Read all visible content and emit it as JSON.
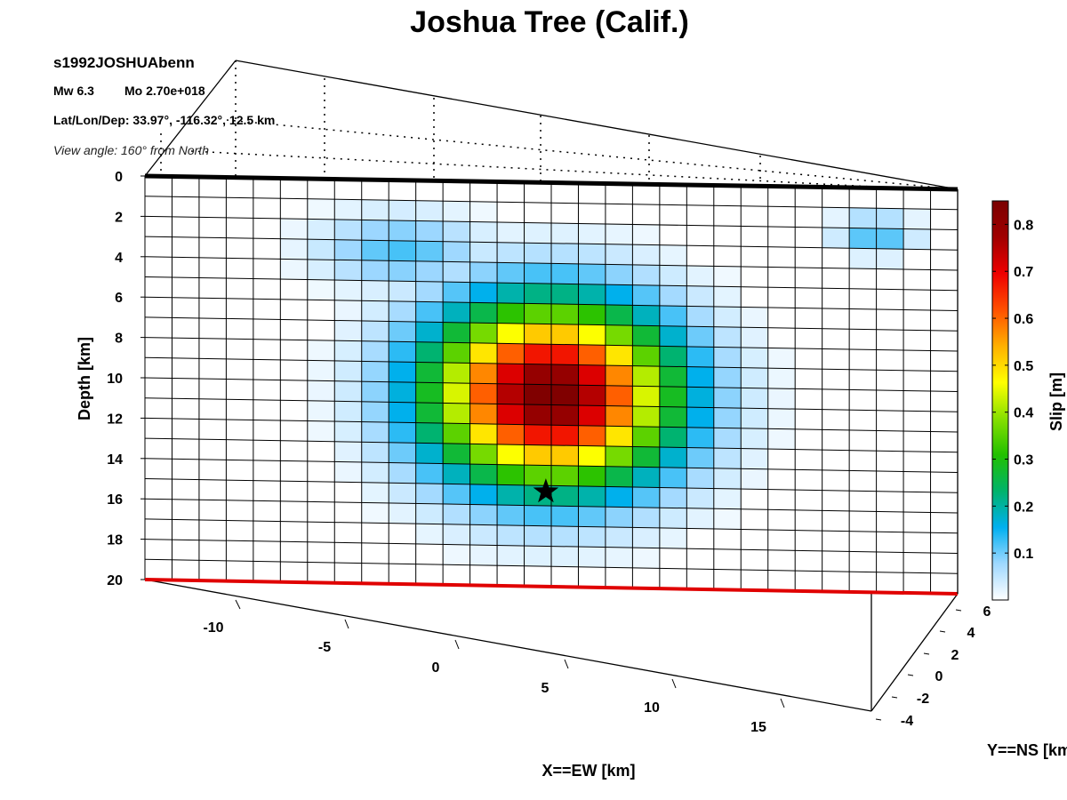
{
  "chart_data": {
    "type": "heatmap",
    "title": "Joshua Tree (Calif.)",
    "event_id": "s1992JOSHUAbenn",
    "magnitude_text": "Mw 6.3",
    "moment_text": "Mo 2.70e+018",
    "location_text": "Lat/Lon/Dep: 33.97°, -116.32°, 12.5 km",
    "view_angle_text": "View angle: 160° from North",
    "xlabel": "X==EW [km]",
    "ylabel": "Y==NS [km]",
    "zlabel": "Depth [km]",
    "colorbar_label": "Slip [m]",
    "colormap": [
      "#ffffff",
      "#9fd8ff",
      "#00b0f0",
      "#00b36b",
      "#22c000",
      "#88e000",
      "#ffff00",
      "#ffb000",
      "#ff5000",
      "#ee0000",
      "#a00000",
      "#7a0000"
    ],
    "color_range": [
      0,
      0.85
    ],
    "colorbar_ticks": [
      "0.1",
      "0.2",
      "0.3",
      "0.4",
      "0.5",
      "0.6",
      "0.7",
      "0.8"
    ],
    "depth_ticks": [
      "0",
      "2",
      "4",
      "6",
      "8",
      "10",
      "12",
      "14",
      "16",
      "18",
      "20"
    ],
    "depth_range": [
      0,
      20
    ],
    "ew_ticks": [
      "-10",
      "-5",
      "0",
      "5",
      "10",
      "15"
    ],
    "ns_ticks": [
      "6",
      "4",
      "2",
      "0",
      "-2",
      "-4"
    ],
    "grid": true,
    "fault_patches": {
      "along_strike": 30,
      "down_dip": 20
    },
    "slip_asperities": [
      {
        "center_col": 15,
        "center_row": 10.5,
        "peak_slip_m": 0.85,
        "width_col": 4.3,
        "width_row": 4.3
      },
      {
        "center_col": 9.5,
        "center_row": 3.5,
        "peak_slip_m": 0.12,
        "width_col": 3.0,
        "width_row": 1.8
      },
      {
        "center_col": 27,
        "center_row": 2.3,
        "peak_slip_m": 0.13,
        "width_col": 1.4,
        "width_row": 1.0
      }
    ],
    "hypocenter": {
      "col": 14.8,
      "row": 15.3
    }
  }
}
